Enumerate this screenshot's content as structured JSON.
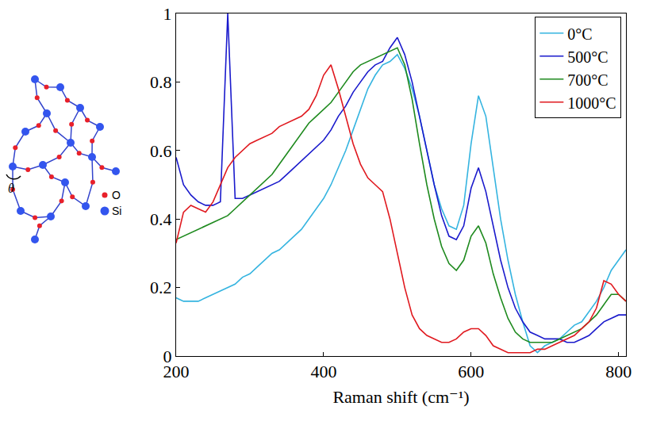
{
  "chart_data": {
    "type": "line",
    "x_label": "Raman shift (cm⁻¹)",
    "x": [
      200,
      210,
      220,
      230,
      240,
      250,
      260,
      270,
      280,
      290,
      300,
      310,
      320,
      330,
      340,
      350,
      360,
      370,
      380,
      390,
      400,
      410,
      420,
      430,
      440,
      450,
      460,
      470,
      480,
      490,
      500,
      510,
      520,
      530,
      540,
      550,
      560,
      570,
      580,
      590,
      600,
      610,
      620,
      630,
      640,
      650,
      660,
      670,
      680,
      690,
      700,
      710,
      720,
      730,
      740,
      750,
      760,
      770,
      780,
      790,
      800,
      810
    ],
    "series": [
      {
        "name": "0°C",
        "color": "#35b4e0",
        "values": [
          0.17,
          0.16,
          0.16,
          0.16,
          0.17,
          0.18,
          0.19,
          0.2,
          0.21,
          0.23,
          0.24,
          0.26,
          0.28,
          0.3,
          0.31,
          0.33,
          0.35,
          0.37,
          0.4,
          0.43,
          0.46,
          0.5,
          0.55,
          0.6,
          0.66,
          0.72,
          0.78,
          0.82,
          0.85,
          0.86,
          0.88,
          0.84,
          0.78,
          0.7,
          0.6,
          0.5,
          0.43,
          0.38,
          0.37,
          0.44,
          0.62,
          0.76,
          0.7,
          0.55,
          0.4,
          0.28,
          0.18,
          0.1,
          0.03,
          0.01,
          0.03,
          0.04,
          0.05,
          0.07,
          0.09,
          0.1,
          0.13,
          0.16,
          0.2,
          0.25,
          0.28,
          0.31
        ]
      },
      {
        "name": "500°C",
        "color": "#1a1acc",
        "values": [
          0.58,
          0.5,
          0.47,
          0.45,
          0.44,
          0.44,
          0.45,
          1.0,
          0.46,
          0.46,
          0.47,
          0.48,
          0.49,
          0.5,
          0.51,
          0.53,
          0.55,
          0.57,
          0.59,
          0.61,
          0.63,
          0.66,
          0.7,
          0.73,
          0.77,
          0.8,
          0.83,
          0.85,
          0.86,
          0.9,
          0.93,
          0.88,
          0.8,
          0.7,
          0.6,
          0.5,
          0.41,
          0.35,
          0.34,
          0.38,
          0.49,
          0.55,
          0.48,
          0.38,
          0.28,
          0.2,
          0.14,
          0.1,
          0.07,
          0.06,
          0.05,
          0.05,
          0.05,
          0.04,
          0.04,
          0.05,
          0.06,
          0.08,
          0.1,
          0.11,
          0.12,
          0.12
        ]
      },
      {
        "name": "700°C",
        "color": "#1e8a1e",
        "values": [
          0.34,
          0.35,
          0.36,
          0.37,
          0.38,
          0.39,
          0.4,
          0.41,
          0.43,
          0.45,
          0.47,
          0.49,
          0.51,
          0.53,
          0.56,
          0.59,
          0.62,
          0.65,
          0.68,
          0.7,
          0.72,
          0.74,
          0.77,
          0.8,
          0.83,
          0.85,
          0.86,
          0.87,
          0.88,
          0.89,
          0.9,
          0.85,
          0.75,
          0.62,
          0.5,
          0.4,
          0.32,
          0.27,
          0.25,
          0.28,
          0.35,
          0.38,
          0.33,
          0.24,
          0.17,
          0.11,
          0.07,
          0.05,
          0.04,
          0.04,
          0.04,
          0.04,
          0.05,
          0.06,
          0.07,
          0.08,
          0.1,
          0.12,
          0.15,
          0.18,
          0.18,
          0.16
        ]
      },
      {
        "name": "1000°C",
        "color": "#e0191f",
        "values": [
          0.33,
          0.42,
          0.44,
          0.43,
          0.42,
          0.45,
          0.5,
          0.55,
          0.58,
          0.6,
          0.62,
          0.63,
          0.64,
          0.65,
          0.67,
          0.68,
          0.69,
          0.7,
          0.72,
          0.76,
          0.82,
          0.85,
          0.78,
          0.7,
          0.62,
          0.56,
          0.52,
          0.5,
          0.48,
          0.4,
          0.3,
          0.2,
          0.12,
          0.08,
          0.06,
          0.05,
          0.04,
          0.04,
          0.05,
          0.07,
          0.08,
          0.08,
          0.06,
          0.03,
          0.02,
          0.01,
          0.01,
          0.01,
          0.01,
          0.02,
          0.02,
          0.03,
          0.04,
          0.05,
          0.06,
          0.08,
          0.1,
          0.14,
          0.22,
          0.21,
          0.18,
          0.16
        ]
      }
    ],
    "xlim": [
      200,
      810
    ],
    "xticks": [
      200,
      400,
      600,
      800
    ],
    "ylim": [
      0,
      1
    ],
    "yticks": [
      0,
      0.2,
      0.4,
      0.6,
      0.8,
      1
    ],
    "grid": false,
    "legend": "upper right"
  },
  "inset": {
    "angle_label": "θ",
    "legend": [
      {
        "label": "O",
        "color": "#e8202a"
      },
      {
        "label": "Si",
        "color": "#3355ee"
      }
    ]
  }
}
